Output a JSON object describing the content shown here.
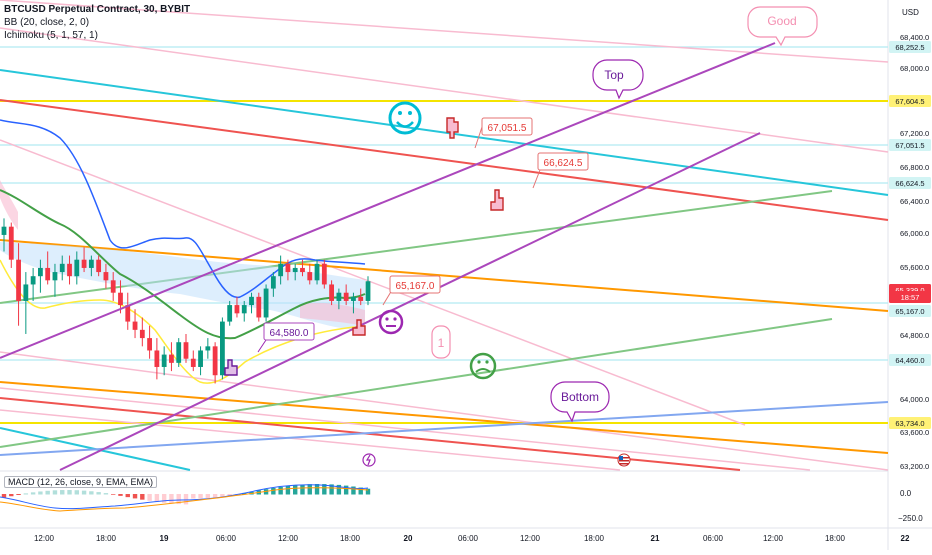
{
  "header": {
    "symbol_line": "BTCUSD Perpetual Contract, 30, BYBIT",
    "indicator_bb": "BB (20, close, 2, 0)",
    "indicator_ichimoku": "Ichimoku (5, 1, 57, 1)"
  },
  "price_axis": {
    "currency": "USD",
    "ticks": [
      "68,400.0",
      "68,000.0",
      "67,200.0",
      "66,800.0",
      "66,400.0",
      "66,000.0",
      "65,600.0",
      "64,800.0",
      "64,000.0",
      "63,600.0",
      "63,200.0"
    ],
    "badges": [
      {
        "label": "68,252.5",
        "bg": "#d2f4f4",
        "fg": "#131722"
      },
      {
        "label": "67,604.5",
        "bg": "#fff176",
        "fg": "#131722"
      },
      {
        "label": "67,051.5",
        "bg": "#d2f4f4",
        "fg": "#131722"
      },
      {
        "label": "66,624.5",
        "bg": "#d2f4f4",
        "fg": "#131722"
      },
      {
        "label": "65,339.0",
        "bg": "#f23645",
        "fg": "#ffffff"
      },
      {
        "label": "18:57",
        "bg": "#f23645",
        "fg": "#ffffff"
      },
      {
        "label": "65,167.0",
        "bg": "#d2f4f4",
        "fg": "#131722"
      },
      {
        "label": "64,460.0",
        "bg": "#d2f4f4",
        "fg": "#131722"
      },
      {
        "label": "63,734.0",
        "bg": "#fff176",
        "fg": "#131722"
      }
    ]
  },
  "macd_panel": {
    "legend": "MACD (12, 26, close, 9, EMA, EMA)",
    "ticks": [
      "0.0",
      "−250.0"
    ]
  },
  "time_axis": {
    "ticks": [
      "12:00",
      "18:00",
      "19",
      "06:00",
      "12:00",
      "18:00",
      "20",
      "06:00",
      "12:00",
      "18:00",
      "21",
      "06:00",
      "12:00",
      "18:00",
      "22"
    ]
  },
  "annotations": {
    "callouts": [
      "Good",
      "Top",
      "Bottom",
      "1"
    ],
    "price_labels": [
      "67,051.5",
      "66,624.5",
      "65,167.0",
      "64,580.0"
    ]
  },
  "colors": {
    "up_candle": "#089981",
    "down_candle": "#f23645",
    "bb_basis": "#2962ff",
    "trend_purple": "#9c27b0",
    "orange_line": "#ff9800",
    "yellow_line": "#f4e400",
    "teal_line": "#26c6da",
    "green_line": "#4caf50",
    "pink_line": "#f8bbd0"
  },
  "chart_data": {
    "type": "candlestick",
    "symbol": "BTCUSD",
    "interval": "30",
    "exchange": "BYBIT",
    "ylim": [
      63100,
      68650
    ],
    "last_price": 65339.0,
    "horizontal_levels": [
      68252.5,
      67604.5,
      67051.5,
      66624.5,
      65167.0,
      64460.0,
      63734.0
    ],
    "candles_ohlc_approx": [
      [
        65900,
        66100,
        65700,
        66000
      ],
      [
        66000,
        66050,
        65500,
        65600
      ],
      [
        65600,
        65800,
        64800,
        65100
      ],
      [
        65100,
        65450,
        64700,
        65300
      ],
      [
        65300,
        65500,
        65100,
        65400
      ],
      [
        65400,
        65600,
        65200,
        65500
      ],
      [
        65500,
        65700,
        65300,
        65350
      ],
      [
        65350,
        65550,
        65150,
        65450
      ],
      [
        65450,
        65650,
        65350,
        65550
      ],
      [
        65550,
        65650,
        65300,
        65400
      ],
      [
        65400,
        65700,
        65300,
        65600
      ],
      [
        65600,
        65750,
        65450,
        65500
      ],
      [
        65500,
        65650,
        65400,
        65600
      ],
      [
        65600,
        65650,
        65400,
        65450
      ],
      [
        65450,
        65550,
        65250,
        65350
      ],
      [
        65350,
        65450,
        65100,
        65200
      ],
      [
        65200,
        65350,
        64950,
        65050
      ],
      [
        65050,
        65200,
        64750,
        64850
      ],
      [
        64850,
        65000,
        64650,
        64750
      ],
      [
        64750,
        64900,
        64550,
        64650
      ],
      [
        64650,
        64800,
        64400,
        64500
      ],
      [
        64500,
        64650,
        64150,
        64300
      ],
      [
        64300,
        64550,
        64200,
        64450
      ],
      [
        64450,
        64600,
        64250,
        64350
      ],
      [
        64350,
        64650,
        64300,
        64600
      ],
      [
        64600,
        64700,
        64350,
        64400
      ],
      [
        64400,
        64500,
        64250,
        64300
      ],
      [
        64300,
        64550,
        64200,
        64500
      ],
      [
        64500,
        64650,
        64400,
        64550
      ],
      [
        64550,
        64600,
        64100,
        64200
      ],
      [
        64200,
        64900,
        64150,
        64850
      ],
      [
        64850,
        65100,
        64800,
        65050
      ],
      [
        65050,
        65150,
        64900,
        64950
      ],
      [
        64950,
        65100,
        64850,
        65050
      ],
      [
        65050,
        65200,
        64950,
        65150
      ],
      [
        65150,
        65200,
        64850,
        64900
      ],
      [
        64900,
        65300,
        64850,
        65250
      ],
      [
        65250,
        65450,
        65150,
        65400
      ],
      [
        65400,
        65650,
        65300,
        65550
      ],
      [
        65550,
        65600,
        65350,
        65450
      ],
      [
        65450,
        65550,
        65350,
        65500
      ],
      [
        65500,
        65600,
        65400,
        65450
      ],
      [
        65450,
        65550,
        65300,
        65350
      ],
      [
        65350,
        65600,
        65300,
        65550
      ],
      [
        65550,
        65600,
        65250,
        65300
      ],
      [
        65300,
        65350,
        65050,
        65100
      ],
      [
        65100,
        65250,
        65000,
        65200
      ],
      [
        65200,
        65300,
        65050,
        65100
      ],
      [
        65100,
        65200,
        64950,
        65150
      ],
      [
        65150,
        65250,
        65050,
        65100
      ],
      [
        65100,
        65400,
        65050,
        65339
      ]
    ]
  }
}
